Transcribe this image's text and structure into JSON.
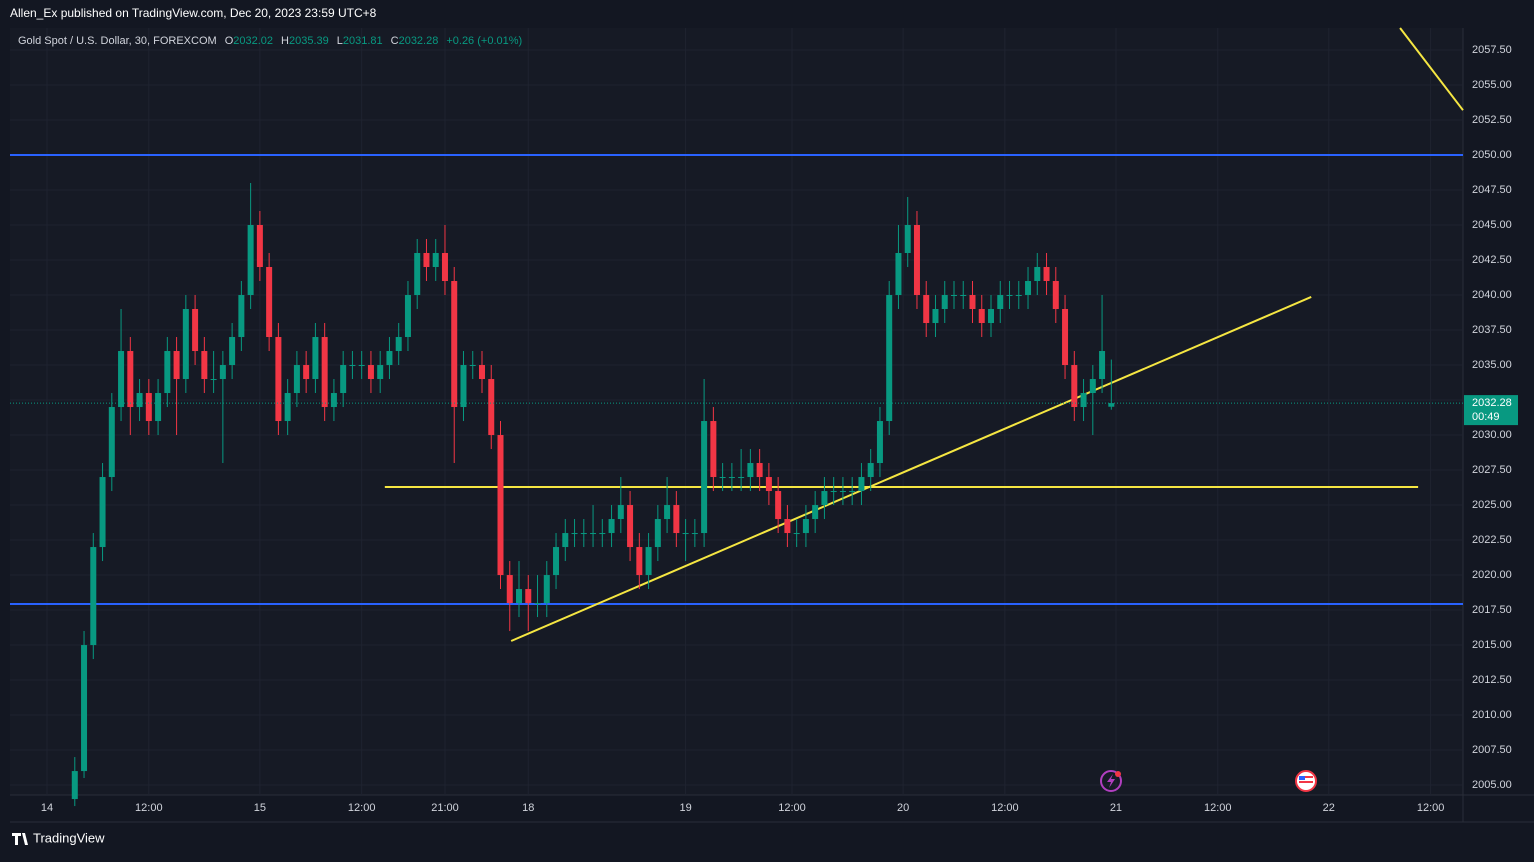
{
  "header": {
    "publisher": "Allen_Ex published on TradingView.com, Dec 20, 2023 23:59 UTC+8",
    "brand": "TradingView"
  },
  "chart_data": {
    "type": "candlestick",
    "symbol": "Gold Spot / U.S. Dollar, 30, FOREXCOM",
    "legend_labels": [
      "O",
      "H",
      "L",
      "C"
    ],
    "change": "+0.26 (+0.01%)",
    "countdown": "00:49",
    "up_color": "#089981",
    "down_color": "#f23645",
    "xlim": [
      0,
      314
    ],
    "ylim": [
      2004.29,
      2059.07
    ],
    "xticks": [
      {
        "value": 8,
        "label": "14"
      },
      {
        "value": 30,
        "label": "12:00"
      },
      {
        "value": 54,
        "label": "15"
      },
      {
        "value": 76,
        "label": "12:00"
      },
      {
        "value": 94,
        "label": "21:00"
      },
      {
        "value": 112,
        "label": "18"
      },
      {
        "value": 146,
        "label": "19"
      },
      {
        "value": 169,
        "label": "12:00"
      },
      {
        "value": 193,
        "label": "20"
      },
      {
        "value": 215,
        "label": "12:00"
      },
      {
        "value": 239,
        "label": "21"
      },
      {
        "value": 261,
        "label": "12:00"
      },
      {
        "value": 285,
        "label": "22"
      },
      {
        "value": 307,
        "label": "12:00"
      }
    ],
    "yticks": [
      {
        "value": 2005,
        "label": "2005.00"
      },
      {
        "value": 2007.5,
        "label": "2007.50"
      },
      {
        "value": 2010,
        "label": "2010.00"
      },
      {
        "value": 2012.5,
        "label": "2012.50"
      },
      {
        "value": 2015,
        "label": "2015.00"
      },
      {
        "value": 2017.5,
        "label": "2017.50"
      },
      {
        "value": 2020,
        "label": "2020.00"
      },
      {
        "value": 2022.5,
        "label": "2022.50"
      },
      {
        "value": 2025,
        "label": "2025.00"
      },
      {
        "value": 2027.5,
        "label": "2027.50"
      },
      {
        "value": 2030,
        "label": "2030.00"
      },
      {
        "value": 2032.5,
        "label": "2032.50"
      },
      {
        "value": 2035,
        "label": "2035.00"
      },
      {
        "value": 2037.5,
        "label": "2037.50"
      },
      {
        "value": 2040,
        "label": "2040.00"
      },
      {
        "value": 2042.5,
        "label": "2042.50"
      },
      {
        "value": 2045,
        "label": "2045.00"
      },
      {
        "value": 2047.5,
        "label": "2047.50"
      },
      {
        "value": 2050,
        "label": "2050.00"
      },
      {
        "value": 2052.5,
        "label": "2052.50"
      },
      {
        "value": 2055,
        "label": "2055.00"
      },
      {
        "value": 2057.5,
        "label": "2057.50"
      }
    ],
    "grid": true,
    "x": [
      14,
      16,
      18,
      20,
      22,
      24,
      26,
      28,
      30,
      32,
      34,
      36,
      38,
      40,
      42,
      44,
      46,
      48,
      50,
      52,
      54,
      56,
      58,
      60,
      62,
      64,
      66,
      68,
      70,
      72,
      74,
      76,
      78,
      80,
      82,
      84,
      86,
      88,
      90,
      92,
      94,
      96,
      98,
      100,
      102,
      104,
      106,
      108,
      110,
      112,
      114,
      116,
      118,
      120,
      122,
      124,
      126,
      128,
      130,
      132,
      134,
      136,
      138,
      140,
      142,
      144,
      146,
      148,
      150,
      152,
      154,
      156,
      158,
      160,
      162,
      164,
      166,
      168,
      170,
      172,
      174,
      176,
      178,
      180,
      182,
      184,
      186,
      188,
      190,
      192,
      194,
      196,
      198,
      200,
      202,
      204,
      206,
      208,
      210,
      212,
      214,
      216,
      218,
      220,
      222,
      224,
      226,
      228,
      230,
      232,
      234,
      236,
      238
    ],
    "candles": [
      [
        2004,
        2007,
        2003.5,
        2006
      ],
      [
        2006,
        2016,
        2005.5,
        2015
      ],
      [
        2015,
        2023,
        2014,
        2022
      ],
      [
        2022,
        2028,
        2021,
        2027
      ],
      [
        2027,
        2033,
        2026,
        2032
      ],
      [
        2032,
        2039,
        2031,
        2036
      ],
      [
        2036,
        2037,
        2030,
        2032
      ],
      [
        2032,
        2034,
        2031,
        2033
      ],
      [
        2033,
        2034,
        2030,
        2031
      ],
      [
        2031,
        2034,
        2030,
        2033
      ],
      [
        2033,
        2037,
        2032,
        2036
      ],
      [
        2036,
        2037,
        2030,
        2034
      ],
      [
        2034,
        2040,
        2033,
        2039
      ],
      [
        2039,
        2040,
        2035,
        2036
      ],
      [
        2036,
        2037,
        2033,
        2034
      ],
      [
        2034,
        2036,
        2033,
        2034
      ],
      [
        2034,
        2036,
        2028,
        2035
      ],
      [
        2035,
        2038,
        2034,
        2037
      ],
      [
        2037,
        2041,
        2036,
        2040
      ],
      [
        2040,
        2048,
        2039,
        2045
      ],
      [
        2045,
        2046,
        2041,
        2042
      ],
      [
        2042,
        2043,
        2036,
        2037
      ],
      [
        2037,
        2038,
        2030,
        2031
      ],
      [
        2031,
        2034,
        2030,
        2033
      ],
      [
        2033,
        2036,
        2032,
        2035
      ],
      [
        2035,
        2036,
        2033,
        2034
      ],
      [
        2034,
        2038,
        2033,
        2037
      ],
      [
        2037,
        2038,
        2031,
        2032
      ],
      [
        2032,
        2034,
        2031,
        2033
      ],
      [
        2033,
        2036,
        2032,
        2035
      ],
      [
        2035,
        2036,
        2034,
        2035
      ],
      [
        2035,
        2036,
        2034,
        2035
      ],
      [
        2035,
        2036,
        2033,
        2034
      ],
      [
        2034,
        2036,
        2033,
        2035
      ],
      [
        2035,
        2037,
        2034,
        2036
      ],
      [
        2036,
        2038,
        2035,
        2037
      ],
      [
        2037,
        2041,
        2036,
        2040
      ],
      [
        2040,
        2044,
        2039,
        2043
      ],
      [
        2043,
        2044,
        2041,
        2042
      ],
      [
        2042,
        2044,
        2041,
        2043
      ],
      [
        2043,
        2045,
        2040,
        2041
      ],
      [
        2041,
        2042,
        2028,
        2032
      ],
      [
        2032,
        2036,
        2031,
        2035
      ],
      [
        2035,
        2036,
        2034,
        2035
      ],
      [
        2035,
        2036,
        2033,
        2034
      ],
      [
        2034,
        2035,
        2029,
        2030
      ],
      [
        2030,
        2031,
        2019,
        2020
      ],
      [
        2020,
        2021,
        2016,
        2018
      ],
      [
        2018,
        2021,
        2017,
        2019
      ],
      [
        2019,
        2020,
        2016,
        2018
      ],
      [
        2018,
        2020,
        2017,
        2018
      ],
      [
        2018,
        2021,
        2017,
        2020
      ],
      [
        2020,
        2023,
        2019,
        2022
      ],
      [
        2022,
        2024,
        2021,
        2023
      ],
      [
        2023,
        2024,
        2022,
        2023
      ],
      [
        2023,
        2024,
        2022,
        2023
      ],
      [
        2023,
        2025,
        2022,
        2023
      ],
      [
        2023,
        2024,
        2022,
        2023
      ],
      [
        2023,
        2025,
        2022,
        2024
      ],
      [
        2024,
        2027,
        2023,
        2025
      ],
      [
        2025,
        2026,
        2021,
        2022
      ],
      [
        2022,
        2023,
        2019,
        2020
      ],
      [
        2020,
        2023,
        2019,
        2022
      ],
      [
        2022,
        2025,
        2021,
        2024
      ],
      [
        2024,
        2027,
        2023,
        2025
      ],
      [
        2025,
        2026,
        2022,
        2023
      ],
      [
        2023,
        2024,
        2021,
        2023
      ],
      [
        2023,
        2024,
        2022,
        2023
      ],
      [
        2023,
        2034,
        2022,
        2031
      ],
      [
        2031,
        2032,
        2026,
        2027
      ],
      [
        2027,
        2028,
        2026,
        2027
      ],
      [
        2027,
        2028,
        2026,
        2027
      ],
      [
        2027,
        2029,
        2026,
        2027
      ],
      [
        2027,
        2029,
        2026,
        2028
      ],
      [
        2028,
        2029,
        2026,
        2027
      ],
      [
        2027,
        2028,
        2025,
        2026
      ],
      [
        2026,
        2027,
        2023,
        2024
      ],
      [
        2024,
        2025,
        2022,
        2023
      ],
      [
        2023,
        2024,
        2022,
        2023
      ],
      [
        2023,
        2025,
        2022,
        2024
      ],
      [
        2024,
        2026,
        2023,
        2025
      ],
      [
        2025,
        2027,
        2024,
        2026
      ],
      [
        2026,
        2027,
        2025,
        2026
      ],
      [
        2026,
        2027,
        2025,
        2026
      ],
      [
        2026,
        2027,
        2025,
        2026
      ],
      [
        2026,
        2028,
        2025,
        2027
      ],
      [
        2027,
        2029,
        2026,
        2028
      ],
      [
        2028,
        2032,
        2027,
        2031
      ],
      [
        2031,
        2041,
        2030,
        2040
      ],
      [
        2040,
        2045,
        2039,
        2043
      ],
      [
        2043,
        2047,
        2042,
        2045
      ],
      [
        2045,
        2046,
        2039,
        2040
      ],
      [
        2040,
        2041,
        2037,
        2038
      ],
      [
        2038,
        2040,
        2037,
        2039
      ],
      [
        2039,
        2041,
        2038,
        2040
      ],
      [
        2040,
        2041,
        2039,
        2040
      ],
      [
        2040,
        2041,
        2039,
        2040
      ],
      [
        2040,
        2041,
        2038,
        2039
      ],
      [
        2039,
        2040,
        2037,
        2038
      ],
      [
        2038,
        2040,
        2037,
        2039
      ],
      [
        2039,
        2041,
        2038,
        2040
      ],
      [
        2040,
        2041,
        2039,
        2040
      ],
      [
        2040,
        2041,
        2039,
        2040
      ],
      [
        2040,
        2042,
        2039,
        2041
      ],
      [
        2041,
        2043,
        2040,
        2042
      ],
      [
        2042,
        2043,
        2040,
        2041
      ],
      [
        2041,
        2042,
        2038,
        2039
      ],
      [
        2039,
        2040,
        2034,
        2035
      ],
      [
        2035,
        2036,
        2031,
        2032
      ],
      [
        2032,
        2034,
        2031,
        2033
      ],
      [
        2033,
        2035,
        2030,
        2034
      ],
      [
        2034,
        2040,
        2033,
        2036
      ],
      [
        2032.02,
        2035.39,
        2031.81,
        2032.28
      ]
    ],
    "hlines": [
      {
        "value": 2050,
        "color": "#2962ff"
      },
      {
        "value": 2017.93,
        "color": "#2962ff"
      }
    ],
    "trendlines": [
      {
        "x": [
          81,
          304.3
        ],
        "y": [
          2026.29,
          2026.29
        ],
        "color": "#f5e642"
      },
      {
        "x": [
          108.3,
          281.2
        ],
        "y": [
          2015.29,
          2039.86
        ],
        "color": "#f5e642"
      },
      {
        "x": [
          300.4,
          314
        ],
        "y": [
          2059.07,
          2053.2
        ],
        "color": "#f5e642"
      }
    ]
  }
}
